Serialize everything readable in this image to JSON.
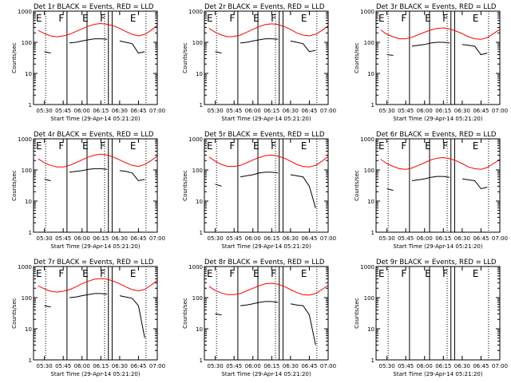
{
  "figure": {
    "x_axis_label": "Start Time (29-Apr-14 05:21:20)",
    "y_axis_label": "Counts/sec",
    "x_tick_labels": [
      "05:30",
      "05:45",
      "06:00",
      "06:15",
      "06:30",
      "06:45",
      "07:00"
    ],
    "y_tick_labels": [
      "1",
      "10",
      "100",
      "1000"
    ],
    "colors": {
      "events": "#000000",
      "lld": "#ff0000",
      "axes": "#000000"
    }
  },
  "chart_data": [
    {
      "type": "line",
      "title": "Det 1r BLACK = Events, RED = LLD",
      "xlabel": "Start Time (29-Apr-14 05:21:20)",
      "ylabel": "Counts/sec",
      "xlim": [
        "05:21:20",
        "07:00"
      ],
      "ylim": [
        1,
        1000
      ],
      "yscale": "log",
      "x_ticks": [
        "05:30",
        "05:45",
        "06:00",
        "06:15",
        "06:30",
        "06:45",
        "07:00"
      ],
      "y_ticks": [
        1,
        10,
        100,
        1000
      ],
      "x": [
        "05:25",
        "05:30",
        "05:35",
        "05:40",
        "05:45",
        "05:50",
        "05:55",
        "06:00",
        "06:05",
        "06:10",
        "06:15",
        "06:20",
        "06:25",
        "06:30",
        "06:35",
        "06:40",
        "06:45",
        "06:50",
        "06:55",
        "07:00"
      ],
      "series": [
        {
          "name": "LLD",
          "color": "#ff0000",
          "values": [
            240,
            190,
            160,
            150,
            160,
            180,
            220,
            270,
            330,
            380,
            400,
            380,
            340,
            280,
            220,
            180,
            160,
            180,
            240,
            350
          ]
        },
        {
          "name": "Events",
          "color": "#000000",
          "values": [
            null,
            50,
            45,
            null,
            null,
            95,
            100,
            110,
            120,
            130,
            130,
            125,
            null,
            110,
            100,
            90,
            45,
            50,
            null,
            null
          ]
        }
      ],
      "annotations": [
        "E",
        "F",
        "E",
        "F",
        "E"
      ],
      "vlines_solid": [
        "05:48",
        "06:04",
        "06:21",
        "06:24"
      ],
      "vlines_dotted": [
        "05:31",
        "06:18",
        "06:51"
      ]
    },
    {
      "type": "line",
      "title": "Det 2r BLACK = Events, RED = LLD",
      "xlabel": "Start Time (29-Apr-14 05:21:20)",
      "ylabel": "Counts/sec",
      "xlim": [
        "05:21:20",
        "07:00"
      ],
      "ylim": [
        1,
        1000
      ],
      "yscale": "log",
      "x_ticks": [
        "05:30",
        "05:45",
        "06:00",
        "06:15",
        "06:30",
        "06:45",
        "07:00"
      ],
      "y_ticks": [
        1,
        10,
        100,
        1000
      ],
      "x": [
        "05:25",
        "05:30",
        "05:35",
        "05:40",
        "05:45",
        "05:50",
        "05:55",
        "06:00",
        "06:05",
        "06:10",
        "06:15",
        "06:20",
        "06:25",
        "06:30",
        "06:35",
        "06:40",
        "06:45",
        "06:50",
        "06:55",
        "07:00"
      ],
      "series": [
        {
          "name": "LLD",
          "color": "#ff0000",
          "values": [
            280,
            210,
            170,
            150,
            155,
            170,
            210,
            260,
            320,
            370,
            390,
            370,
            320,
            260,
            200,
            170,
            160,
            180,
            240,
            340
          ]
        },
        {
          "name": "Events",
          "color": "#000000",
          "values": [
            null,
            50,
            45,
            null,
            null,
            95,
            100,
            110,
            120,
            130,
            130,
            125,
            null,
            110,
            100,
            90,
            50,
            55,
            null,
            null
          ]
        }
      ],
      "annotations": [
        "E",
        "F",
        "E",
        "F",
        "E"
      ],
      "vlines_solid": [
        "05:48",
        "06:04",
        "06:21",
        "06:24"
      ],
      "vlines_dotted": [
        "05:31",
        "06:18",
        "06:51"
      ]
    },
    {
      "type": "line",
      "title": "Det 3r BLACK = Events, RED = LLD",
      "xlabel": "Start Time (29-Apr-14 05:21:20)",
      "ylabel": "Counts/sec",
      "xlim": [
        "05:21:20",
        "07:00"
      ],
      "ylim": [
        1,
        1000
      ],
      "yscale": "log",
      "x_ticks": [
        "05:30",
        "05:45",
        "06:00",
        "06:15",
        "06:30",
        "06:45",
        "07:00"
      ],
      "y_ticks": [
        1,
        10,
        100,
        1000
      ],
      "x": [
        "05:25",
        "05:30",
        "05:35",
        "05:40",
        "05:45",
        "05:50",
        "05:55",
        "06:00",
        "06:05",
        "06:10",
        "06:15",
        "06:20",
        "06:25",
        "06:30",
        "06:35",
        "06:40",
        "06:45",
        "06:50",
        "06:55",
        "07:00"
      ],
      "series": [
        {
          "name": "LLD",
          "color": "#ff0000",
          "values": [
            250,
            180,
            150,
            130,
            130,
            145,
            175,
            210,
            250,
            280,
            290,
            270,
            230,
            190,
            150,
            130,
            125,
            140,
            190,
            260
          ]
        },
        {
          "name": "Events",
          "color": "#000000",
          "values": [
            null,
            40,
            38,
            null,
            null,
            75,
            80,
            85,
            95,
            100,
            100,
            95,
            null,
            85,
            80,
            75,
            40,
            45,
            null,
            null
          ]
        }
      ],
      "annotations": [
        "E",
        "F",
        "E",
        "F",
        "E"
      ],
      "vlines_solid": [
        "05:48",
        "06:04",
        "06:21",
        "06:24"
      ],
      "vlines_dotted": [
        "05:31",
        "06:18",
        "06:51"
      ]
    },
    {
      "type": "line",
      "title": "Det 4r BLACK = Events, RED = LLD",
      "xlabel": "Start Time (29-Apr-14 05:21:20)",
      "ylabel": "Counts/sec",
      "xlim": [
        "05:21:20",
        "07:00"
      ],
      "ylim": [
        1,
        1000
      ],
      "yscale": "log",
      "x_ticks": [
        "05:30",
        "05:45",
        "06:00",
        "06:15",
        "06:30",
        "06:45",
        "07:00"
      ],
      "y_ticks": [
        1,
        10,
        100,
        1000
      ],
      "x": [
        "05:25",
        "05:30",
        "05:35",
        "05:40",
        "05:45",
        "05:50",
        "05:55",
        "06:00",
        "06:05",
        "06:10",
        "06:15",
        "06:20",
        "06:25",
        "06:30",
        "06:35",
        "06:40",
        "06:45",
        "06:50",
        "06:55",
        "07:00"
      ],
      "series": [
        {
          "name": "LLD",
          "color": "#ff0000",
          "values": [
            230,
            170,
            140,
            125,
            125,
            140,
            170,
            210,
            260,
            300,
            320,
            300,
            260,
            210,
            170,
            140,
            130,
            150,
            200,
            280
          ]
        },
        {
          "name": "Events",
          "color": "#000000",
          "values": [
            null,
            50,
            45,
            null,
            null,
            85,
            90,
            95,
            105,
            110,
            110,
            105,
            null,
            95,
            90,
            80,
            45,
            50,
            null,
            null
          ]
        }
      ],
      "annotations": [
        "E",
        "F",
        "E",
        "F",
        "E"
      ],
      "vlines_solid": [
        "05:48",
        "06:04",
        "06:21",
        "06:24"
      ],
      "vlines_dotted": [
        "05:31",
        "06:18",
        "06:51"
      ]
    },
    {
      "type": "line",
      "title": "Det 5r BLACK = Events, RED = LLD",
      "xlabel": "Start Time (29-Apr-14 05:21:20)",
      "ylabel": "Counts/sec",
      "xlim": [
        "05:21:20",
        "07:00"
      ],
      "ylim": [
        1,
        1000
      ],
      "yscale": "log",
      "x_ticks": [
        "05:30",
        "05:45",
        "06:00",
        "06:15",
        "06:30",
        "06:45",
        "07:00"
      ],
      "y_ticks": [
        1,
        10,
        100,
        1000
      ],
      "x": [
        "05:25",
        "05:30",
        "05:35",
        "05:40",
        "05:45",
        "05:50",
        "05:55",
        "06:00",
        "06:05",
        "06:10",
        "06:15",
        "06:20",
        "06:25",
        "06:30",
        "06:35",
        "06:40",
        "06:45",
        "06:50",
        "06:55",
        "07:00"
      ],
      "series": [
        {
          "name": "LLD",
          "color": "#ff0000",
          "values": [
            260,
            190,
            150,
            130,
            130,
            140,
            170,
            210,
            250,
            290,
            300,
            280,
            240,
            190,
            150,
            130,
            125,
            140,
            190,
            270
          ]
        },
        {
          "name": "Events",
          "color": "#000000",
          "values": [
            null,
            35,
            30,
            null,
            null,
            60,
            65,
            70,
            80,
            85,
            85,
            80,
            null,
            70,
            65,
            60,
            30,
            6,
            null,
            null
          ]
        }
      ],
      "annotations": [
        "E",
        "F",
        "E",
        "F",
        "E"
      ],
      "vlines_solid": [
        "05:48",
        "06:04",
        "06:21",
        "06:24"
      ],
      "vlines_dotted": [
        "05:31",
        "06:18",
        "06:51"
      ]
    },
    {
      "type": "line",
      "title": "Det 6r BLACK = Events, RED = LLD",
      "xlabel": "Start Time (29-Apr-14 05:21:20)",
      "ylabel": "Counts/sec",
      "xlim": [
        "05:21:20",
        "07:00"
      ],
      "ylim": [
        1,
        1000
      ],
      "yscale": "log",
      "x_ticks": [
        "05:30",
        "05:45",
        "06:00",
        "06:15",
        "06:30",
        "06:45",
        "07:00"
      ],
      "y_ticks": [
        1,
        10,
        100,
        1000
      ],
      "x": [
        "05:25",
        "05:30",
        "05:35",
        "05:40",
        "05:45",
        "05:50",
        "05:55",
        "06:00",
        "06:05",
        "06:10",
        "06:15",
        "06:20",
        "06:25",
        "06:30",
        "06:35",
        "06:40",
        "06:45",
        "06:50",
        "06:55",
        "07:00"
      ],
      "series": [
        {
          "name": "LLD",
          "color": "#ff0000",
          "values": [
            220,
            160,
            130,
            110,
            105,
            115,
            140,
            170,
            210,
            240,
            250,
            230,
            200,
            160,
            125,
            110,
            105,
            120,
            160,
            220
          ]
        },
        {
          "name": "Events",
          "color": "#000000",
          "values": [
            null,
            25,
            22,
            null,
            null,
            45,
            48,
            52,
            58,
            62,
            62,
            58,
            null,
            52,
            48,
            45,
            25,
            28,
            null,
            null
          ]
        }
      ],
      "annotations": [
        "E",
        "F",
        "E",
        "F",
        "E"
      ],
      "vlines_solid": [
        "05:48",
        "06:04",
        "06:21",
        "06:24"
      ],
      "vlines_dotted": [
        "05:31",
        "06:18",
        "06:51"
      ]
    },
    {
      "type": "line",
      "title": "Det 7r BLACK = Events, RED = LLD",
      "xlabel": "Start Time (29-Apr-14 05:21:20)",
      "ylabel": "Counts/sec",
      "xlim": [
        "05:21:20",
        "07:00"
      ],
      "ylim": [
        1,
        1000
      ],
      "yscale": "log",
      "x_ticks": [
        "05:30",
        "05:45",
        "06:00",
        "06:15",
        "06:30",
        "06:45",
        "07:00"
      ],
      "y_ticks": [
        1,
        10,
        100,
        1000
      ],
      "x": [
        "05:25",
        "05:30",
        "05:35",
        "05:40",
        "05:45",
        "05:50",
        "05:55",
        "06:00",
        "06:05",
        "06:10",
        "06:15",
        "06:20",
        "06:25",
        "06:30",
        "06:35",
        "06:40",
        "06:45",
        "06:50",
        "06:55",
        "07:00"
      ],
      "series": [
        {
          "name": "LLD",
          "color": "#ff0000",
          "values": [
            240,
            190,
            160,
            150,
            160,
            180,
            220,
            280,
            340,
            390,
            410,
            390,
            340,
            280,
            220,
            180,
            165,
            185,
            250,
            360
          ]
        },
        {
          "name": "Events",
          "color": "#000000",
          "values": [
            null,
            55,
            50,
            null,
            null,
            100,
            105,
            115,
            125,
            135,
            135,
            130,
            null,
            115,
            105,
            95,
            55,
            5,
            null,
            null
          ]
        }
      ],
      "annotations": [
        "E",
        "F",
        "E",
        "F",
        "E"
      ],
      "vlines_solid": [
        "05:48",
        "06:04",
        "06:21",
        "06:24"
      ],
      "vlines_dotted": [
        "05:31",
        "06:18",
        "06:51"
      ]
    },
    {
      "type": "line",
      "title": "Det 8r BLACK = Events, RED = LLD",
      "xlabel": "Start Time (29-Apr-14 05:21:20)",
      "ylabel": "Counts/sec",
      "xlim": [
        "05:21:20",
        "07:00"
      ],
      "ylim": [
        1,
        1000
      ],
      "yscale": "log",
      "x_ticks": [
        "05:30",
        "05:45",
        "06:00",
        "06:15",
        "06:30",
        "06:45",
        "07:00"
      ],
      "y_ticks": [
        1,
        10,
        100,
        1000
      ],
      "x": [
        "05:25",
        "05:30",
        "05:35",
        "05:40",
        "05:45",
        "05:50",
        "05:55",
        "06:00",
        "06:05",
        "06:10",
        "06:15",
        "06:20",
        "06:25",
        "06:30",
        "06:35",
        "06:40",
        "06:45",
        "06:50",
        "06:55",
        "07:00"
      ],
      "series": [
        {
          "name": "LLD",
          "color": "#ff0000",
          "values": [
            230,
            170,
            140,
            125,
            125,
            135,
            165,
            200,
            240,
            280,
            290,
            270,
            230,
            180,
            145,
            125,
            120,
            135,
            180,
            250
          ]
        },
        {
          "name": "Events",
          "color": "#000000",
          "values": [
            null,
            30,
            28,
            null,
            null,
            55,
            58,
            63,
            70,
            75,
            75,
            70,
            null,
            63,
            58,
            55,
            28,
            3,
            null,
            null
          ]
        }
      ],
      "annotations": [
        "E",
        "F",
        "E",
        "F",
        "E"
      ],
      "vlines_solid": [
        "05:48",
        "06:04",
        "06:21",
        "06:24"
      ],
      "vlines_dotted": [
        "05:31",
        "06:18",
        "06:51"
      ]
    },
    {
      "type": "line",
      "title": "Det 9r BLACK = Events, RED = LLD",
      "xlabel": "Start Time (29-Apr-14 05:21:20)",
      "ylabel": "Counts/sec",
      "xlim": [
        "05:21:20",
        "07:00"
      ],
      "ylim": [
        1,
        1000
      ],
      "yscale": "log",
      "x_ticks": [
        "05:30",
        "05:45",
        "06:00",
        "06:15",
        "06:30",
        "06:45",
        "07:00"
      ],
      "y_ticks": [
        1,
        10,
        100,
        1000
      ],
      "x": [],
      "series": [],
      "annotations": [
        "E",
        "F",
        "E",
        "F",
        "E"
      ],
      "vlines_solid": [
        "05:48",
        "06:04",
        "06:21",
        "06:24"
      ],
      "vlines_dotted": [
        "05:31",
        "06:18",
        "06:51"
      ]
    }
  ]
}
